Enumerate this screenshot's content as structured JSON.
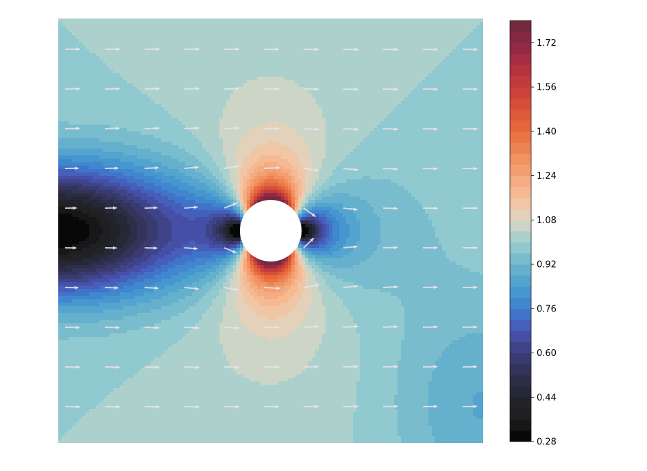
{
  "chart_data": {
    "type": "contour",
    "title": "",
    "xlabel": "",
    "ylabel": "",
    "x_axis_visible": false,
    "y_axis_visible": false,
    "description_of_field": "Speed magnitude of flow past a circular obstacle with overlaid velocity arrows",
    "obstacle": {
      "shape": "circle",
      "fill": "#ffffff"
    },
    "colorbar": {
      "location": "right",
      "colormap": "icefire",
      "min": 0.28,
      "max": 1.8,
      "level_step": 0.04,
      "ticks": [
        0.28,
        0.44,
        0.6,
        0.76,
        0.92,
        1.08,
        1.24,
        1.4,
        1.56,
        1.72
      ],
      "tick_labels": [
        "0.28",
        "0.44",
        "0.60",
        "0.76",
        "0.92",
        "1.08",
        "1.24",
        "1.40",
        "1.56",
        "1.72"
      ],
      "color_stops": [
        {
          "value": 0.28,
          "color": "#000000"
        },
        {
          "value": 0.36,
          "color": "#1f1e1e"
        },
        {
          "value": 0.44,
          "color": "#22252d"
        },
        {
          "value": 0.52,
          "color": "#2f3150"
        },
        {
          "value": 0.6,
          "color": "#3c3e7a"
        },
        {
          "value": 0.68,
          "color": "#4855b5"
        },
        {
          "value": 0.76,
          "color": "#3d7fcf"
        },
        {
          "value": 0.84,
          "color": "#4a9ecf"
        },
        {
          "value": 0.92,
          "color": "#6db6cc"
        },
        {
          "value": 1.0,
          "color": "#9ccfd0"
        },
        {
          "value": 1.08,
          "color": "#dcd7c3"
        },
        {
          "value": 1.16,
          "color": "#f6c19c"
        },
        {
          "value": 1.24,
          "color": "#f4a57a"
        },
        {
          "value": 1.32,
          "color": "#ee8b5a"
        },
        {
          "value": 1.4,
          "color": "#e86d3d"
        },
        {
          "value": 1.48,
          "color": "#dc5337"
        },
        {
          "value": 1.56,
          "color": "#c83e3a"
        },
        {
          "value": 1.64,
          "color": "#ad3040"
        },
        {
          "value": 1.72,
          "color": "#8c2747"
        },
        {
          "value": 1.8,
          "color": "#6c2a3c"
        }
      ]
    },
    "vector_field": {
      "arrow_color": "#e8e4ea",
      "note": "velocity arrows drawn on a regular grid; deflect around the obstacle"
    }
  }
}
